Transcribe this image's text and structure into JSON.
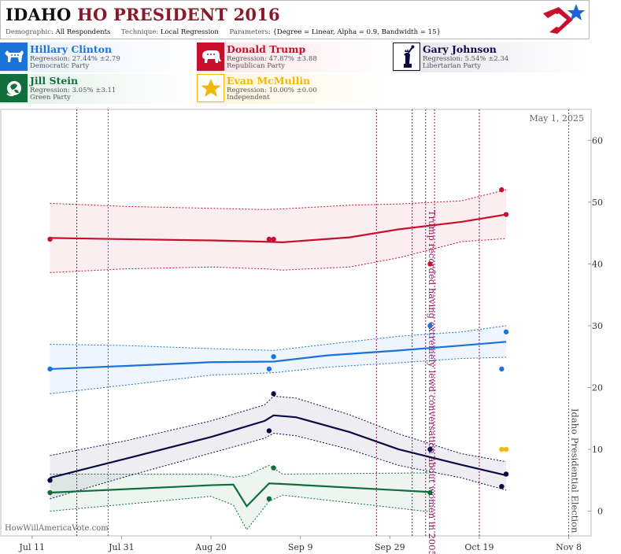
{
  "header": {
    "state": "IDAHO",
    "race": "HO PRESIDENT 2016",
    "demographic_label": "Demographic:",
    "demographic_value": "All Respondents",
    "technique_label": "Technique:",
    "technique_value": "Local Regression",
    "parameters_label": "Parameters:",
    "parameters_value": "{Degree = Linear, Alpha = 0.9, Bandwidth = 15}"
  },
  "colors": {
    "clinton": "#1a73d9",
    "trump": "#c8102e",
    "johnson": "#0b0a45",
    "stein": "#0f6e3a",
    "mcmullin": "#f2b705",
    "event": "#8a1a5a",
    "clinton_event": "#1a73d9"
  },
  "candidates": [
    {
      "name": "Hillary Clinton",
      "regression": "Regression: 27.44% ±2.79",
      "party": "Democratic Party",
      "icon": "donkey-icon"
    },
    {
      "name": "Donald Trump",
      "regression": "Regression: 47.87% ±3.88",
      "party": "Republican Party",
      "icon": "elephant-icon"
    },
    {
      "name": "Gary Johnson",
      "regression": "Regression: 5.54% ±2.34",
      "party": "Libertarian Party",
      "icon": "statue-of-liberty-icon"
    },
    {
      "name": "Jill Stein",
      "regression": "Regression: 3.05% ±3.11",
      "party": "Green Party",
      "icon": "globe-leaf-icon"
    },
    {
      "name": "Evan McMullin",
      "regression": "Regression: 10.00% ±0.00",
      "party": "Independent",
      "icon": "star-icon"
    }
  ],
  "chart_data": {
    "type": "line",
    "date_label": "May 1, 2025",
    "watermark": "HowWillAmericaVote.com",
    "x_ticks": [
      "Jul 11",
      "Jul 31",
      "Aug 20",
      "Sep 9",
      "Sep 29",
      "Oct 19",
      "Nov 8"
    ],
    "x_tick_dates": [
      "2016-07-11",
      "2016-07-31",
      "2016-08-20",
      "2016-09-09",
      "2016-09-29",
      "2016-10-19",
      "2016-11-08"
    ],
    "y_ticks": [
      0,
      10,
      20,
      30,
      40,
      50,
      60
    ],
    "ylim": [
      -4,
      65
    ],
    "xlim": [
      "2016-07-04",
      "2016-11-13"
    ],
    "events": [
      {
        "date": "2016-07-21",
        "kind": "republican"
      },
      {
        "date": "2016-07-28",
        "kind": "democratic"
      },
      {
        "date": "2016-09-26",
        "kind": "debate"
      },
      {
        "date": "2016-10-04",
        "kind": "debate"
      },
      {
        "date": "2016-10-07",
        "kind": "trump-tape",
        "label": "Trump recorded having extremely lewd conversation about women in 2005"
      },
      {
        "date": "2016-10-09",
        "kind": "debate"
      },
      {
        "date": "2016-10-19",
        "kind": "debate"
      },
      {
        "date": "2016-11-08",
        "kind": "election",
        "label": "Idaho Presidential Election"
      }
    ],
    "series": [
      {
        "name": "Donald Trump",
        "key": "trump",
        "x": [
          "2016-07-15",
          "2016-08-01",
          "2016-08-20",
          "2016-09-01",
          "2016-09-05",
          "2016-09-20",
          "2016-10-01",
          "2016-10-15",
          "2016-10-25"
        ],
        "y": [
          44.2,
          44.0,
          43.8,
          43.6,
          43.5,
          44.3,
          45.6,
          46.8,
          48.0
        ],
        "upper": [
          49.8,
          49.3,
          49.0,
          48.8,
          48.9,
          49.5,
          49.7,
          50.2,
          52.0
        ],
        "lower": [
          38.6,
          39.2,
          39.5,
          39.2,
          39.0,
          39.5,
          41.0,
          43.6,
          44.1
        ],
        "points": [
          [
            "2016-07-15",
            44.0
          ],
          [
            "2016-09-02",
            44.0
          ],
          [
            "2016-09-03",
            44.0
          ],
          [
            "2016-10-08",
            40.0
          ],
          [
            "2016-10-24",
            52.0
          ],
          [
            "2016-10-25",
            48.0
          ]
        ]
      },
      {
        "name": "Hillary Clinton",
        "key": "clinton",
        "x": [
          "2016-07-15",
          "2016-08-01",
          "2016-08-20",
          "2016-09-03",
          "2016-09-15",
          "2016-10-01",
          "2016-10-15",
          "2016-10-25"
        ],
        "y": [
          23.0,
          23.5,
          24.1,
          24.2,
          25.2,
          26.0,
          26.8,
          27.4
        ],
        "upper": [
          27.0,
          26.8,
          26.3,
          26.0,
          27.0,
          28.3,
          29.0,
          30.0
        ],
        "lower": [
          19.0,
          20.4,
          22.0,
          22.4,
          23.3,
          24.0,
          24.7,
          24.9
        ],
        "points": [
          [
            "2016-07-15",
            23.0
          ],
          [
            "2016-09-02",
            23.0
          ],
          [
            "2016-09-03",
            25.0
          ],
          [
            "2016-10-08",
            30.0
          ],
          [
            "2016-10-24",
            23.0
          ],
          [
            "2016-10-25",
            29.0
          ]
        ]
      },
      {
        "name": "Gary Johnson",
        "key": "johnson",
        "x": [
          "2016-07-15",
          "2016-08-01",
          "2016-08-20",
          "2016-09-01",
          "2016-09-03",
          "2016-09-08",
          "2016-09-20",
          "2016-10-01",
          "2016-10-15",
          "2016-10-25"
        ],
        "y": [
          5.4,
          8.5,
          12.0,
          14.6,
          15.5,
          15.2,
          12.8,
          10.0,
          7.5,
          5.8
        ],
        "upper": [
          9.0,
          11.4,
          14.6,
          17.2,
          18.6,
          18.3,
          15.6,
          12.5,
          9.3,
          8.0
        ],
        "lower": [
          2.0,
          5.6,
          9.4,
          11.8,
          12.6,
          12.2,
          10.0,
          7.4,
          5.4,
          3.4
        ],
        "points": [
          [
            "2016-07-15",
            5.0
          ],
          [
            "2016-09-02",
            13.0
          ],
          [
            "2016-09-03",
            19.0
          ],
          [
            "2016-10-08",
            10.0
          ],
          [
            "2016-10-24",
            4.0
          ],
          [
            "2016-10-25",
            6.0
          ]
        ]
      },
      {
        "name": "Jill Stein",
        "key": "stein",
        "x": [
          "2016-07-15",
          "2016-08-20",
          "2016-08-25",
          "2016-08-28",
          "2016-09-02",
          "2016-09-05",
          "2016-10-08"
        ],
        "y": [
          3.0,
          4.2,
          4.3,
          0.8,
          4.5,
          4.4,
          3.1
        ],
        "upper": [
          6.0,
          6.0,
          5.5,
          5.8,
          7.4,
          6.0,
          6.2
        ],
        "lower": [
          0.0,
          2.4,
          1.0,
          -3.0,
          1.6,
          2.6,
          -0.1
        ],
        "points": [
          [
            "2016-07-15",
            3.0
          ],
          [
            "2016-09-02",
            2.0
          ],
          [
            "2016-09-03",
            7.0
          ],
          [
            "2016-10-08",
            3.0
          ]
        ]
      },
      {
        "name": "Evan McMullin",
        "key": "mcmullin",
        "x": [],
        "y": [],
        "upper": [],
        "lower": [],
        "points": [
          [
            "2016-10-24",
            10.0
          ],
          [
            "2016-10-25",
            10.0
          ]
        ]
      }
    ]
  }
}
